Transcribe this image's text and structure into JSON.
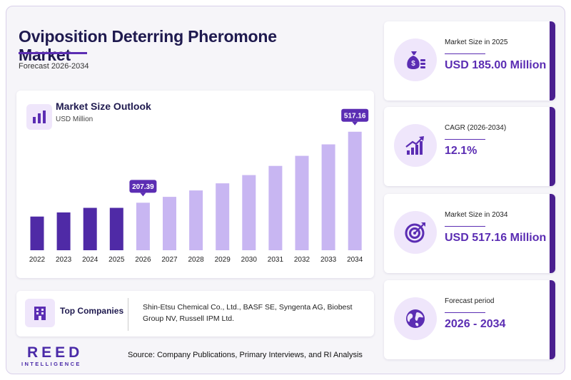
{
  "header": {
    "title": "Oviposition Deterring Pheromone Market",
    "subtitle": "Forecast 2026-2034"
  },
  "chart_card": {
    "title": "Market Size Outlook",
    "unit": "USD Million",
    "icon": "bar-chart-icon"
  },
  "chart_data": {
    "type": "bar",
    "title": "Market Size Outlook",
    "ylabel": "USD Million",
    "categories": [
      "2022",
      "2023",
      "2024",
      "2025",
      "2026",
      "2027",
      "2028",
      "2029",
      "2030",
      "2031",
      "2032",
      "2033",
      "2034"
    ],
    "values": [
      147,
      165,
      185,
      185,
      207.39,
      233,
      261,
      292,
      328,
      368,
      412,
      462,
      517.16
    ],
    "historical_count": 4,
    "callouts": [
      {
        "index": 4,
        "label": "207.39"
      },
      {
        "index": 12,
        "label": "517.16"
      }
    ],
    "colors": {
      "historical": "#4f2aa6",
      "forecast": "#c8b6f2",
      "callout": "#5b2db3"
    },
    "ylim": [
      0,
      560
    ],
    "grid": false
  },
  "top_companies": {
    "label": "Top Companies",
    "icon": "building-icon",
    "text": "Shin-Etsu Chemical Co., Ltd., BASF SE, Syngenta AG, Biobest Group NV, Russell IPM Ltd."
  },
  "stats": [
    {
      "label": "Market Size in 2025",
      "value": "USD 185.00 Million",
      "icon": "money-bag-icon"
    },
    {
      "label": "CAGR (2026-2034)",
      "value": "12.1%",
      "icon": "growth-chart-icon"
    },
    {
      "label": "Market Size in 2034",
      "value": "USD 517.16 Million",
      "icon": "target-icon"
    },
    {
      "label": "Forecast period",
      "value": "2026 - 2034",
      "icon": "globe-icon"
    }
  ],
  "logo": {
    "main": "REED",
    "sub": "INTELLIGENCE"
  },
  "source": "Source: Company Publications, Primary Interviews, and RI Analysis",
  "colors": {
    "accent": "#5b2db3",
    "title": "#1f1a4f",
    "icon_bg": "#efe6fb",
    "card_bar": "#4a1f8f"
  }
}
